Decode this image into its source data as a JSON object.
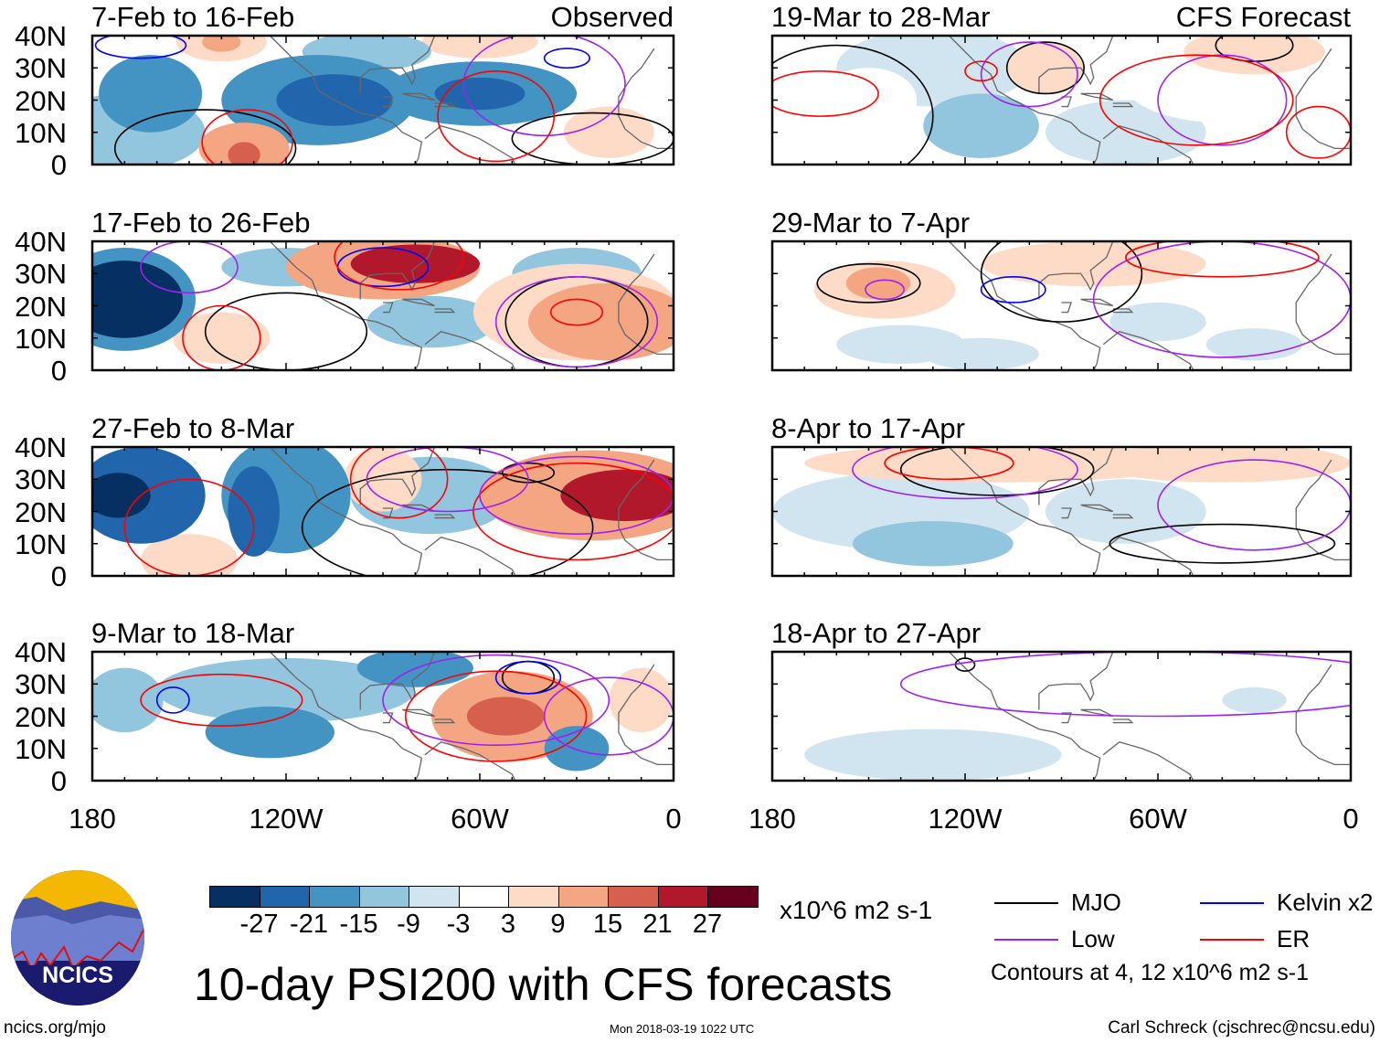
{
  "title": "10-day PSI200 with CFS forecasts",
  "observed_label": "Observed",
  "forecast_label": "CFS Forecast",
  "lat_labels": [
    "40N",
    "30N",
    "20N",
    "10N",
    "0"
  ],
  "lon_labels": [
    "180",
    "120W",
    "60W",
    "0"
  ],
  "units": "x10^6 m2 s-1",
  "colorbar": {
    "colors": [
      "#053061",
      "#2166ac",
      "#4393c3",
      "#92c5de",
      "#d1e5f0",
      "#ffffff",
      "#fddbc7",
      "#f4a582",
      "#d6604d",
      "#b2182b",
      "#67001f"
    ],
    "labels": [
      "-27",
      "-21",
      "-15",
      "-9",
      "-3",
      "3",
      "9",
      "15",
      "21",
      "27"
    ]
  },
  "legend": [
    {
      "label": "MJO",
      "color": "#000000"
    },
    {
      "label": "Kelvin x2",
      "color": "#0000ff"
    },
    {
      "label": "Low",
      "color": "#a020f0"
    },
    {
      "label": "ER",
      "color": "#ff0000"
    }
  ],
  "contour_note": "Contours at 4, 12 x10^6 m2 s-1",
  "logo_text": "NCICS",
  "website": "ncics.org/mjo",
  "timestamp": "Mon 2018-03-19 1022 UTC",
  "credit": "Carl Schreck (cjschrec@ncsu.edu)",
  "chart_data": {
    "type": "heatmap",
    "xlim": [
      -180,
      0
    ],
    "ylim": [
      0,
      40
    ],
    "panels": [
      {
        "title": "7-Feb to 16-Feb",
        "kind": "observed",
        "blobs": [
          [
            -170,
            10,
            -9,
            25,
            12
          ],
          [
            -162,
            22,
            -15,
            16,
            12
          ],
          [
            -110,
            20,
            -15,
            30,
            14
          ],
          [
            -105,
            20,
            -21,
            18,
            8
          ],
          [
            -60,
            22,
            -15,
            30,
            10
          ],
          [
            -60,
            22,
            -21,
            14,
            5
          ],
          [
            -140,
            38,
            9,
            14,
            6
          ],
          [
            -140,
            38,
            15,
            6,
            3
          ],
          [
            -60,
            38,
            9,
            18,
            5
          ],
          [
            -133,
            5,
            15,
            14,
            8
          ],
          [
            -133,
            3,
            21,
            5,
            4
          ],
          [
            -20,
            10,
            9,
            14,
            8
          ],
          [
            -95,
            35,
            -9,
            20,
            6
          ]
        ],
        "contours": [
          [
            -145,
            5,
            "MJO",
            28,
            12
          ],
          [
            -132,
            7,
            "ER",
            14,
            10
          ],
          [
            -165,
            37,
            "Kelvin",
            14,
            4
          ],
          [
            -33,
            33,
            "Kelvin",
            7,
            3
          ],
          [
            -25,
            8,
            "MJO",
            25,
            8
          ],
          [
            -40,
            25,
            "Low",
            25,
            16
          ],
          [
            -55,
            15,
            "ER",
            18,
            14
          ]
        ]
      },
      {
        "title": "19-Mar to 28-Mar",
        "kind": "forecast",
        "blobs": [
          [
            -130,
            30,
            -3,
            30,
            12
          ],
          [
            -115,
            12,
            -9,
            18,
            10
          ],
          [
            -70,
            10,
            -3,
            25,
            10
          ],
          [
            -150,
            20,
            3,
            15,
            10
          ],
          [
            -95,
            30,
            9,
            12,
            8
          ],
          [
            -30,
            35,
            9,
            22,
            7
          ],
          [
            -40,
            25,
            3,
            30,
            12
          ],
          [
            -5,
            15,
            3,
            8,
            12
          ]
        ],
        "contours": [
          [
            -160,
            15,
            "MJO",
            30,
            22
          ],
          [
            -95,
            30,
            "MJO",
            12,
            8
          ],
          [
            -30,
            37,
            "MJO",
            12,
            5
          ],
          [
            -100,
            28,
            "Low",
            15,
            10
          ],
          [
            -40,
            20,
            "Low",
            20,
            14
          ],
          [
            -48,
            20,
            "ER",
            30,
            14
          ],
          [
            -10,
            10,
            "ER",
            10,
            8
          ],
          [
            -165,
            22,
            "ER",
            18,
            7
          ],
          [
            -115,
            29,
            "ER",
            5,
            3
          ]
        ]
      },
      {
        "title": "17-Feb to 26-Feb",
        "kind": "observed",
        "blobs": [
          [
            -170,
            22,
            -15,
            22,
            16
          ],
          [
            -170,
            22,
            -27,
            18,
            12
          ],
          [
            -120,
            32,
            -9,
            20,
            6
          ],
          [
            -75,
            15,
            -9,
            20,
            8
          ],
          [
            -30,
            30,
            -9,
            20,
            8
          ],
          [
            -90,
            32,
            15,
            30,
            10
          ],
          [
            -80,
            33,
            27,
            20,
            6
          ],
          [
            -140,
            10,
            9,
            15,
            8
          ],
          [
            -20,
            15,
            15,
            25,
            12
          ],
          [
            -30,
            18,
            9,
            32,
            15
          ]
        ],
        "contours": [
          [
            -120,
            12,
            "MJO",
            25,
            12
          ],
          [
            -30,
            15,
            "MJO",
            22,
            14
          ],
          [
            -90,
            32,
            "Kelvin",
            14,
            6
          ],
          [
            -150,
            32,
            "Low",
            15,
            8
          ],
          [
            -30,
            15,
            "Low",
            25,
            14
          ],
          [
            -140,
            10,
            "ER",
            12,
            10
          ],
          [
            -85,
            35,
            "ER",
            20,
            10
          ],
          [
            -30,
            18,
            "ER",
            8,
            4
          ]
        ]
      },
      {
        "title": "29-Mar to 7-Apr",
        "kind": "forecast",
        "blobs": [
          [
            -145,
            25,
            9,
            22,
            9
          ],
          [
            -147,
            27,
            15,
            10,
            5
          ],
          [
            -80,
            33,
            9,
            35,
            7
          ],
          [
            -40,
            25,
            3,
            35,
            12
          ],
          [
            -140,
            8,
            -3,
            20,
            6
          ],
          [
            -115,
            5,
            -3,
            18,
            5
          ],
          [
            -30,
            8,
            -3,
            15,
            5
          ],
          [
            -60,
            15,
            -3,
            15,
            6
          ]
        ],
        "contours": [
          [
            -150,
            27,
            "MJO",
            16,
            6
          ],
          [
            -90,
            30,
            "MJO",
            25,
            15
          ],
          [
            -105,
            25,
            "Kelvin",
            10,
            4
          ],
          [
            -40,
            22,
            "Low",
            40,
            18
          ],
          [
            -145,
            25,
            "Low",
            6,
            3
          ],
          [
            -40,
            35,
            "ER",
            30,
            6
          ]
        ]
      },
      {
        "title": "27-Feb to 8-Mar",
        "kind": "observed",
        "blobs": [
          [
            -165,
            25,
            -21,
            20,
            15
          ],
          [
            -172,
            25,
            -27,
            10,
            7
          ],
          [
            -120,
            25,
            -15,
            20,
            18
          ],
          [
            -130,
            20,
            -21,
            8,
            14
          ],
          [
            -75,
            25,
            -9,
            25,
            12
          ],
          [
            -25,
            25,
            15,
            35,
            14
          ],
          [
            -15,
            25,
            27,
            20,
            8
          ],
          [
            -90,
            30,
            9,
            12,
            10
          ],
          [
            -150,
            5,
            9,
            15,
            8
          ]
        ],
        "contours": [
          [
            -70,
            15,
            "MJO",
            45,
            18
          ],
          [
            -45,
            32,
            "MJO",
            8,
            3
          ],
          [
            -150,
            15,
            "ER",
            20,
            15
          ],
          [
            -30,
            20,
            "ER",
            32,
            15
          ],
          [
            -85,
            30,
            "ER",
            15,
            12
          ],
          [
            -30,
            25,
            "Low",
            30,
            12
          ],
          [
            -70,
            30,
            "Low",
            25,
            10
          ]
        ]
      },
      {
        "title": "8-Apr to 17-Apr",
        "kind": "forecast",
        "blobs": [
          [
            -110,
            35,
            9,
            60,
            6
          ],
          [
            -40,
            35,
            9,
            40,
            6
          ],
          [
            -130,
            10,
            -9,
            25,
            7
          ],
          [
            -70,
            20,
            -3,
            25,
            10
          ],
          [
            -140,
            20,
            -3,
            40,
            12
          ]
        ],
        "contours": [
          [
            -110,
            33,
            "MJO",
            30,
            8
          ],
          [
            -40,
            10,
            "MJO",
            35,
            6
          ],
          [
            -120,
            33,
            "Low",
            35,
            9
          ],
          [
            -30,
            22,
            "Low",
            30,
            14
          ],
          [
            -125,
            35,
            "ER",
            20,
            5
          ]
        ]
      },
      {
        "title": "9-Mar to 18-Mar",
        "kind": "observed",
        "blobs": [
          [
            -170,
            25,
            -9,
            12,
            10
          ],
          [
            -125,
            15,
            -15,
            20,
            8
          ],
          [
            -80,
            35,
            -15,
            18,
            6
          ],
          [
            -50,
            20,
            15,
            25,
            14
          ],
          [
            -52,
            20,
            21,
            12,
            6
          ],
          [
            -30,
            10,
            -15,
            10,
            7
          ],
          [
            -120,
            28,
            -9,
            40,
            10
          ],
          [
            -10,
            25,
            9,
            10,
            10
          ]
        ],
        "contours": [
          [
            -45,
            32,
            "MJO",
            8,
            5
          ],
          [
            -45,
            32,
            "Kelvin",
            10,
            5
          ],
          [
            -155,
            25,
            "Kelvin",
            5,
            4
          ],
          [
            -55,
            20,
            "ER",
            28,
            14
          ],
          [
            -140,
            25,
            "ER",
            25,
            8
          ],
          [
            -55,
            25,
            "Low",
            35,
            14
          ],
          [
            -20,
            20,
            "Low",
            20,
            12
          ]
        ]
      },
      {
        "title": "18-Apr to 27-Apr",
        "kind": "forecast",
        "blobs": [
          [
            -100,
            33,
            3,
            80,
            8
          ],
          [
            -30,
            33,
            3,
            30,
            7
          ],
          [
            -130,
            8,
            -3,
            40,
            8
          ],
          [
            -30,
            25,
            -3,
            10,
            4
          ]
        ],
        "contours": [
          [
            -120,
            36,
            "MJO",
            3,
            2
          ],
          [
            -60,
            30,
            "Low",
            80,
            10
          ]
        ]
      }
    ]
  }
}
